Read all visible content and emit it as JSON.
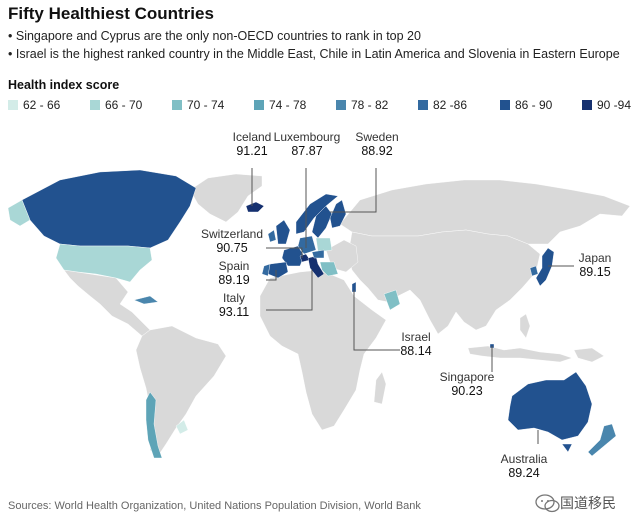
{
  "title": "Fifty Healthiest Countries",
  "bullets": [
    "Singapore and Cyprus are the only non-OECD countries to rank in top 20",
    "Israel is the highest ranked country in the Middle East, Chile in Latin America and Slovenia in Eastern Europe"
  ],
  "legend": {
    "title": "Health index score",
    "items": [
      {
        "label": "62 - 66",
        "color": "#d3ece8"
      },
      {
        "label": "66 - 70",
        "color": "#a9d7d6"
      },
      {
        "label": "70 - 74",
        "color": "#80bfc5"
      },
      {
        "label": "74 - 78",
        "color": "#5ea4b7"
      },
      {
        "label": "78 - 82",
        "color": "#4a86ad"
      },
      {
        "label": "82 -86",
        "color": "#336aa0"
      },
      {
        "label": "86 - 90",
        "color": "#22528f"
      },
      {
        "label": "90 -94",
        "color": "#15306f"
      }
    ]
  },
  "callouts": [
    {
      "name": "Iceland",
      "value": "91.21"
    },
    {
      "name": "Luxembourg",
      "value": "87.87"
    },
    {
      "name": "Sweden",
      "value": "88.92"
    },
    {
      "name": "Switzerland",
      "value": "90.75"
    },
    {
      "name": "Spain",
      "value": "89.19"
    },
    {
      "name": "Italy",
      "value": "93.11"
    },
    {
      "name": "Japan",
      "value": "89.15"
    },
    {
      "name": "Israel",
      "value": "88.14"
    },
    {
      "name": "Singapore",
      "value": "90.23"
    },
    {
      "name": "Australia",
      "value": "89.24"
    }
  ],
  "source": "Sources: World Health Organization, United Nations Population Division, World Bank",
  "watermark": "国道移民",
  "colors": {
    "land_unranked": "#d9d9d9",
    "leader_line": "#555555"
  }
}
